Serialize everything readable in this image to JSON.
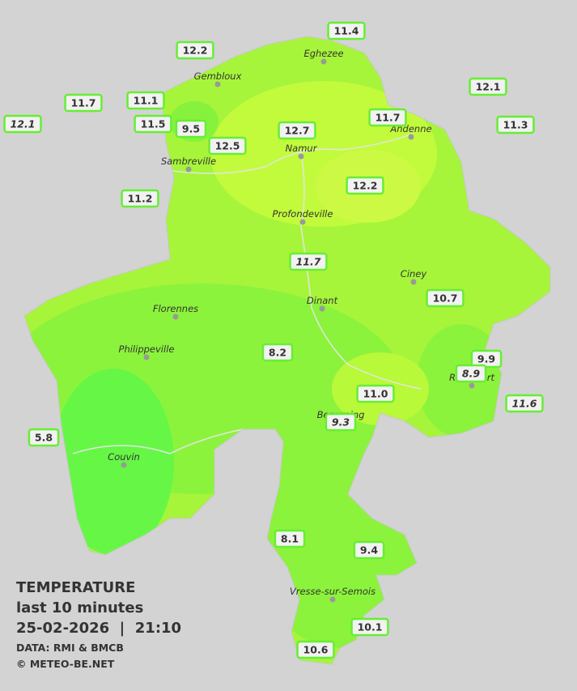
{
  "legend": {
    "title": "TEMPERATURE",
    "period": "last 10 minutes",
    "timestamp": "25-02-2026  |  21:10",
    "source": "DATA: RMI & BMCB",
    "copyright": "© METEO-BE.NET"
  },
  "cities": [
    {
      "name": "Eghezee"
    },
    {
      "name": "Gembloux"
    },
    {
      "name": "Andenne"
    },
    {
      "name": "Namur"
    },
    {
      "name": "Sambreville"
    },
    {
      "name": "Profondeville"
    },
    {
      "name": "Ciney"
    },
    {
      "name": "Dinant"
    },
    {
      "name": "Florennes"
    },
    {
      "name": "Philippeville"
    },
    {
      "name": "Rochefort"
    },
    {
      "name": "Beauraing"
    },
    {
      "name": "Couvin"
    },
    {
      "name": "Vresse-sur-Semois"
    }
  ],
  "stations": [
    {
      "value": "11.4"
    },
    {
      "value": "12.2"
    },
    {
      "value": "12.1"
    },
    {
      "value": "11.7"
    },
    {
      "value": "11.1"
    },
    {
      "value": "12.1"
    },
    {
      "value": "11.5"
    },
    {
      "value": "9.5"
    },
    {
      "value": "11.7"
    },
    {
      "value": "11.3"
    },
    {
      "value": "12.7"
    },
    {
      "value": "12.5"
    },
    {
      "value": "12.2"
    },
    {
      "value": "11.2"
    },
    {
      "value": "11.7"
    },
    {
      "value": "10.7"
    },
    {
      "value": "8.2"
    },
    {
      "value": "9.9"
    },
    {
      "value": "8.9"
    },
    {
      "value": "11.0"
    },
    {
      "value": "11.6"
    },
    {
      "value": "9.3"
    },
    {
      "value": "5.8"
    },
    {
      "value": "8.1"
    },
    {
      "value": "9.4"
    },
    {
      "value": "10.1"
    },
    {
      "value": "10.6"
    }
  ]
}
